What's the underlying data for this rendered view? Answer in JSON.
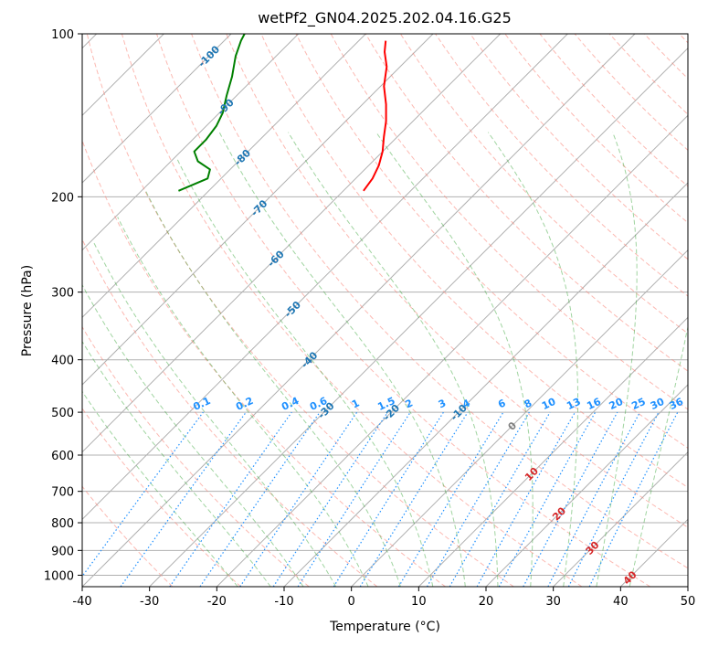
{
  "chart_data": {
    "type": "skew-t",
    "title": "wetPf2_GN04.2025.202.04.16.G25",
    "xlabel": "Temperature (°C)",
    "ylabel": "Pressure (hPa)",
    "xlim": [
      -40,
      50
    ],
    "ylim": [
      1050,
      100
    ],
    "x_ticks": [
      -40,
      -30,
      -20,
      -10,
      0,
      10,
      20,
      30,
      40,
      50
    ],
    "y_ticks": [
      100,
      200,
      300,
      400,
      500,
      600,
      700,
      800,
      900,
      1000
    ],
    "grid": true,
    "isotherm_labels": [
      -100,
      -90,
      -80,
      -70,
      -60,
      -50,
      -40,
      -30,
      -20,
      -10,
      0,
      10,
      20,
      30,
      40
    ],
    "mixing_ratio_labels": [
      "0.1",
      "0.2",
      "0.4",
      "0.6",
      "1",
      "1.5",
      "2",
      "3",
      "4",
      "6",
      "8",
      "10",
      "13",
      "16",
      "20",
      "25",
      "30",
      "36"
    ],
    "colors": {
      "temperature": "#ff0000",
      "dewpoint": "#008000",
      "isotherm_label_cold": "#1f77b4",
      "isotherm_label_warm": "#d62728",
      "mixing_ratio": "#1e90ff",
      "dry_adiabat": "#fa8072",
      "moist_adiabat": "#2ca02c",
      "grid": "#b0b0b0"
    },
    "series": [
      {
        "points": [
          {
            "p": 195,
            "t": -57
          },
          {
            "p": 185,
            "t": -57.5
          },
          {
            "p": 175,
            "t": -58.5
          },
          {
            "p": 165,
            "t": -60
          },
          {
            "p": 155,
            "t": -62
          },
          {
            "p": 145,
            "t": -64
          },
          {
            "p": 135,
            "t": -66.5
          },
          {
            "p": 125,
            "t": -69.5
          },
          {
            "p": 115,
            "t": -72
          },
          {
            "p": 108,
            "t": -74.5
          },
          {
            "p": 103,
            "t": -76
          }
        ]
      },
      {
        "points": [
          {
            "p": 195,
            "t": -84.5
          },
          {
            "p": 185,
            "t": -82
          },
          {
            "p": 178,
            "t": -83
          },
          {
            "p": 172,
            "t": -86
          },
          {
            "p": 165,
            "t": -88
          },
          {
            "p": 157,
            "t": -88
          },
          {
            "p": 148,
            "t": -88.5
          },
          {
            "p": 140,
            "t": -89.5
          },
          {
            "p": 130,
            "t": -91.5
          },
          {
            "p": 120,
            "t": -93.5
          },
          {
            "p": 110,
            "t": -96
          },
          {
            "p": 103,
            "t": -97.5
          },
          {
            "p": 100,
            "t": -98
          }
        ]
      }
    ]
  }
}
